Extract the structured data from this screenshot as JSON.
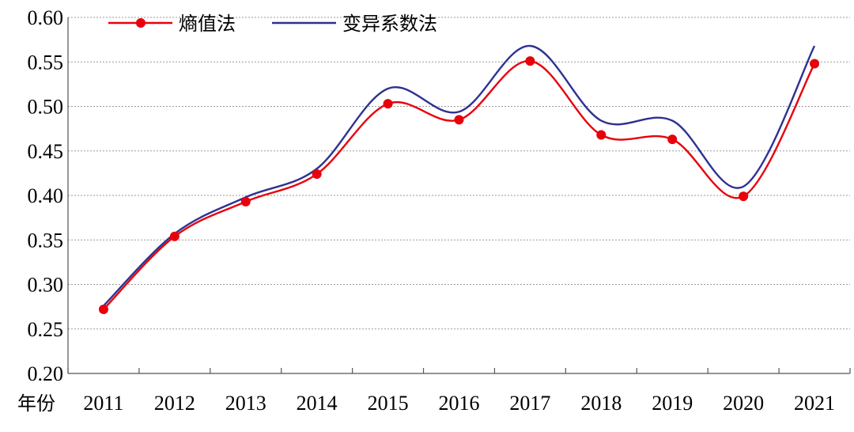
{
  "chart_data": {
    "type": "line",
    "xlabel": "年份",
    "ylabel": "",
    "title": "",
    "categories": [
      "2011",
      "2012",
      "2013",
      "2014",
      "2015",
      "2016",
      "2017",
      "2018",
      "2019",
      "2020",
      "2021"
    ],
    "ylim": [
      0.2,
      0.6
    ],
    "yticks": [
      "0.20",
      "0.25",
      "0.30",
      "0.35",
      "0.40",
      "0.45",
      "0.50",
      "0.55",
      "0.60"
    ],
    "grid": "horizontal dotted",
    "legend_position": "top-left",
    "series": [
      {
        "name": "熵值法",
        "color": "#e8000b",
        "marker": "circle",
        "values": [
          0.272,
          0.354,
          0.393,
          0.424,
          0.503,
          0.485,
          0.551,
          0.468,
          0.463,
          0.399,
          0.548
        ]
      },
      {
        "name": "变异系数法",
        "color": "#2e3192",
        "marker": "none",
        "values": [
          0.276,
          0.357,
          0.398,
          0.43,
          0.52,
          0.494,
          0.568,
          0.484,
          0.484,
          0.41,
          0.568
        ]
      }
    ]
  }
}
